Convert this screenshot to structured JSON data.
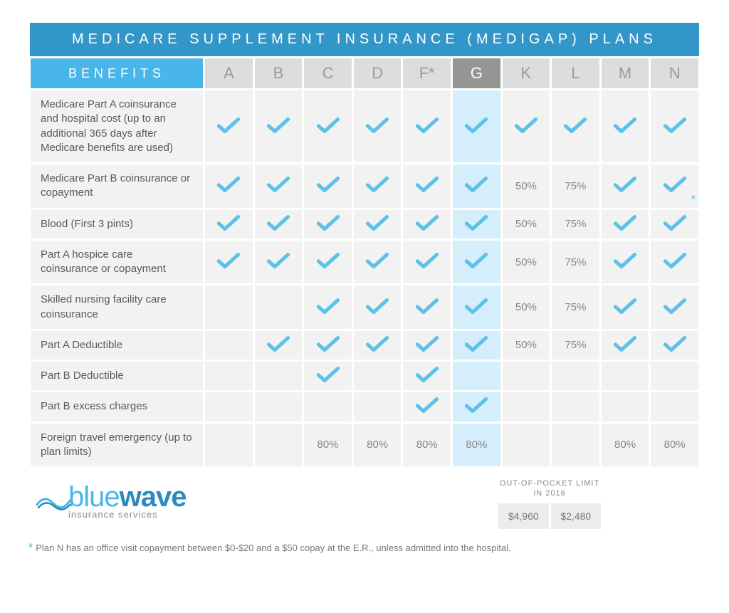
{
  "title": "MEDICARE SUPPLEMENT INSURANCE (MEDIGAP) PLANS",
  "benefits_header": "BENEFITS",
  "plans": [
    "A",
    "B",
    "C",
    "D",
    "F*",
    "G",
    "K",
    "L",
    "M",
    "N"
  ],
  "highlight_plan_index": 5,
  "check_color": "#5dc1e8",
  "header_bg": "#3396c9",
  "benefits_bg": "#48b6e8",
  "plan_header_bg": "#dcdddd",
  "plan_header_fg": "#9a9b9b",
  "highlight_header_bg": "#949595",
  "cell_bg": "#f2f2f2",
  "cell_hl_bg": "#d5eefc",
  "rows": [
    {
      "label": "Medicare Part A coinsurance and hospital cost (up to an additional 365 days after Medicare benefits are used)",
      "cells": [
        "check",
        "check",
        "check",
        "check",
        "check",
        "check",
        "check",
        "check",
        "check",
        "check"
      ]
    },
    {
      "label": "Medicare Part B coinsurance or copayment",
      "cells": [
        "check",
        "check",
        "check",
        "check",
        "check",
        "check",
        "50%",
        "75%",
        "check",
        "check*"
      ]
    },
    {
      "label": "Blood (First 3 pints)",
      "cells": [
        "check",
        "check",
        "check",
        "check",
        "check",
        "check",
        "50%",
        "75%",
        "check",
        "check"
      ]
    },
    {
      "label": "Part A hospice care coinsurance or copayment",
      "cells": [
        "check",
        "check",
        "check",
        "check",
        "check",
        "check",
        "50%",
        "75%",
        "check",
        "check"
      ]
    },
    {
      "label": "Skilled nursing facility care coinsurance",
      "cells": [
        "",
        "",
        "check",
        "check",
        "check",
        "check",
        "50%",
        "75%",
        "check",
        "check"
      ]
    },
    {
      "label": "Part A Deductible",
      "cells": [
        "",
        "check",
        "check",
        "check",
        "check",
        "check",
        "50%",
        "75%",
        "check",
        "check"
      ]
    },
    {
      "label": "Part B Deductible",
      "cells": [
        "",
        "",
        "check",
        "",
        "check",
        "",
        "",
        "",
        "",
        ""
      ]
    },
    {
      "label": "Part B excess charges",
      "cells": [
        "",
        "",
        "",
        "",
        "check",
        "check",
        "",
        "",
        "",
        ""
      ]
    },
    {
      "label": "Foreign travel emergency (up to plan limits)",
      "cells": [
        "",
        "",
        "80%",
        "80%",
        "80%",
        "80%",
        "",
        "",
        "80%",
        "80%"
      ]
    }
  ],
  "limit_title": "OUT-OF-POCKET LIMIT IN 2016",
  "limit_values": [
    "$4,960",
    "$2,480"
  ],
  "logo": {
    "part1": "blue",
    "part2": "wave",
    "sub": "insurance services"
  },
  "footnote": "Plan N has an office visit copayment between $0-$20 and a $50 copay at the E.R., unless admitted into the hospital."
}
